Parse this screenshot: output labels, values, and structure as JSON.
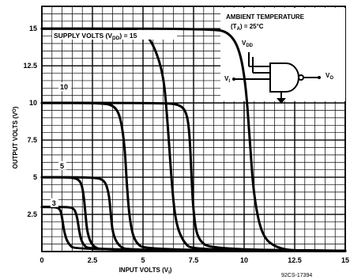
{
  "chart_data": {
    "type": "line",
    "title": "",
    "xlabel": "INPUT VOLTS (V",
    "xlabel_sub": "I",
    "xlabel_end": ")",
    "ylabel": "OUTPUT VOLTS (V",
    "ylabel_sub": "O",
    "ylabel_end": ")",
    "xlim": [
      0,
      15
    ],
    "ylim": [
      0,
      16.5
    ],
    "x_ticks": [
      0,
      2.5,
      5,
      7.5,
      10,
      12.5,
      15
    ],
    "x_tick_labels": [
      "0",
      "2.5",
      "5",
      "7.5",
      "10",
      "12.5",
      "15"
    ],
    "y_ticks": [
      2.5,
      5,
      7.5,
      10,
      12.5,
      15
    ],
    "y_tick_labels": [
      "2.5",
      "5",
      "7.5",
      "10",
      "12.5",
      "15"
    ],
    "grid": true,
    "supply_label_prefix": "SUPPLY VOLTS (V",
    "supply_label_sub": "DD",
    "supply_label_suffix": ") = 15",
    "series_labels": [
      {
        "text": "10",
        "x": 0.9,
        "y": 10.9
      },
      {
        "text": "5",
        "x": 0.9,
        "y": 5.6
      },
      {
        "text": "3",
        "x": 0.5,
        "y": 3.1
      }
    ],
    "inset": {
      "title_line1": "AMBIENT TEMPERATURE",
      "title_line2_a": "(T",
      "title_line2_sub": "A",
      "title_line2_b": ") = 25°C",
      "vdd_label": "V",
      "vdd_sub": "DD",
      "vi_label": "V",
      "vi_sub": "I",
      "vo_label": "V",
      "vo_sub": "O"
    },
    "figure_id": "92CS-17394",
    "series": [
      {
        "points": [
          [
            0,
            15
          ],
          [
            4,
            15
          ],
          [
            5,
            14.8
          ],
          [
            5.5,
            14
          ],
          [
            6,
            12
          ],
          [
            6.2,
            9
          ],
          [
            6.4,
            5
          ],
          [
            6.6,
            2
          ],
          [
            7,
            0.6
          ],
          [
            7.5,
            0.1
          ],
          [
            15,
            0.05
          ]
        ]
      },
      {
        "points": [
          [
            0,
            15
          ],
          [
            8.5,
            15
          ],
          [
            9.3,
            14.7
          ],
          [
            9.8,
            13.5
          ],
          [
            10.1,
            11
          ],
          [
            10.3,
            7
          ],
          [
            10.5,
            3.5
          ],
          [
            10.9,
            1
          ],
          [
            11.6,
            0.25
          ],
          [
            12.5,
            0.05
          ],
          [
            15,
            0.05
          ]
        ]
      },
      {
        "points": [
          [
            0,
            10
          ],
          [
            3,
            10
          ],
          [
            3.6,
            9.8
          ],
          [
            3.9,
            9
          ],
          [
            4.1,
            7
          ],
          [
            4.2,
            4.5
          ],
          [
            4.35,
            2
          ],
          [
            4.6,
            0.6
          ],
          [
            5.2,
            0.1
          ],
          [
            15,
            0.05
          ]
        ]
      },
      {
        "points": [
          [
            0,
            10
          ],
          [
            6,
            10
          ],
          [
            6.8,
            9.9
          ],
          [
            7.15,
            9.4
          ],
          [
            7.3,
            8
          ],
          [
            7.4,
            5
          ],
          [
            7.5,
            2.5
          ],
          [
            7.7,
            0.8
          ],
          [
            8.4,
            0.15
          ],
          [
            15,
            0.05
          ]
        ]
      },
      {
        "points": [
          [
            0,
            5
          ],
          [
            1.5,
            5
          ],
          [
            1.9,
            4.8
          ],
          [
            2.05,
            4
          ],
          [
            2.15,
            2.6
          ],
          [
            2.25,
            1.2
          ],
          [
            2.5,
            0.35
          ],
          [
            3,
            0.08
          ],
          [
            15,
            0.05
          ]
        ]
      },
      {
        "points": [
          [
            0,
            5
          ],
          [
            2.6,
            5
          ],
          [
            3.1,
            4.8
          ],
          [
            3.3,
            4
          ],
          [
            3.4,
            2.7
          ],
          [
            3.5,
            1.2
          ],
          [
            3.8,
            0.35
          ],
          [
            4.3,
            0.08
          ],
          [
            15,
            0.05
          ]
        ]
      },
      {
        "points": [
          [
            0,
            3
          ],
          [
            0.6,
            3
          ],
          [
            0.9,
            2.9
          ],
          [
            1.0,
            2.3
          ],
          [
            1.1,
            1.3
          ],
          [
            1.3,
            0.5
          ],
          [
            1.7,
            0.1
          ],
          [
            15,
            0.05
          ]
        ]
      },
      {
        "points": [
          [
            0,
            3
          ],
          [
            1.3,
            3
          ],
          [
            1.6,
            2.9
          ],
          [
            1.75,
            2.3
          ],
          [
            1.85,
            1.3
          ],
          [
            2.0,
            0.5
          ],
          [
            2.4,
            0.1
          ],
          [
            15,
            0.05
          ]
        ]
      }
    ]
  }
}
